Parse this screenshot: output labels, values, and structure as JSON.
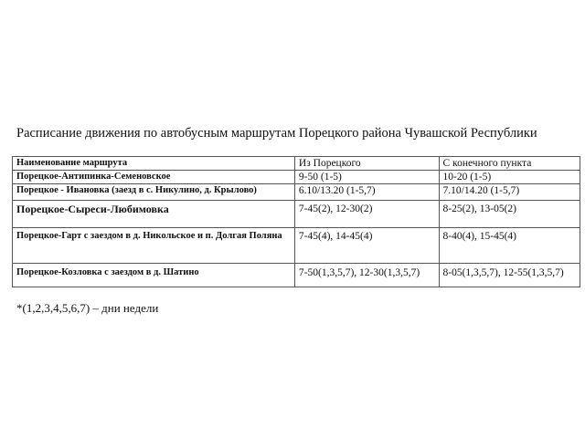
{
  "title": "Расписание движения по автобусным маршрутам Порецкого района Чувашской Республики",
  "table": {
    "headers": [
      "Наименование маршрута",
      "Из Порецкого",
      "С конечного пункта"
    ],
    "rows": [
      {
        "name": "Порецкое-Антипинка-Семеновское",
        "from": "9-50 (1-5)",
        "to": "10-20 (1-5)"
      },
      {
        "name": "Порецкое - Ивановка (заезд в с. Никулино, д. Крылово)",
        "from": "6.10/13.20 (1-5,7)",
        "to": "7.10/14.20 (1-5,7)"
      },
      {
        "name": "Порецкое-Сыреси-Любимовка",
        "from": "7-45(2), 12-30(2)",
        "to": "8-25(2), 13-05(2)"
      },
      {
        "name": "Порецкое-Гарт с заездом в д. Никольское и п. Долгая Поляна",
        "from": "7-45(4), 14-45(4)",
        "to": "8-40(4), 15-45(4)"
      },
      {
        "name": "Порецкое-Козловка с заездом в д. Шатино",
        "from": "7-50(1,3,5,7), 12-30(1,3,5,7)",
        "to": "8-05(1,3,5,7), 12-55(1,3,5,7)"
      }
    ]
  },
  "footnote": "*(1,2,3,4,5,6,7) – дни недели"
}
